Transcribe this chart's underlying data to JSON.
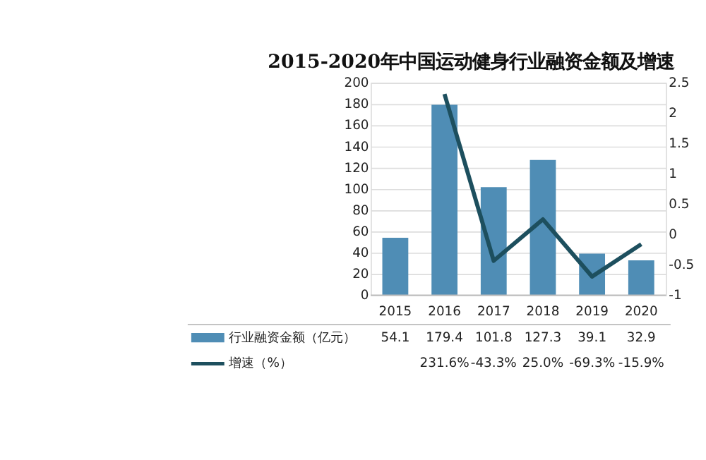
{
  "chart_data": {
    "type": "bar",
    "title": "2015-2020年中国运动健身行业融资金额及增速",
    "categories": [
      "2015",
      "2016",
      "2017",
      "2018",
      "2019",
      "2020"
    ],
    "series": [
      {
        "name": "行业融资金额（亿元）",
        "color": "#4f8db5",
        "values": [
          54.1,
          179.4,
          101.8,
          127.3,
          39.1,
          32.9
        ],
        "value_labels": [
          "54.1",
          "179.4",
          "101.8",
          "127.3",
          "39.1",
          "32.9"
        ]
      },
      {
        "name": "增速（%）",
        "type": "line",
        "axis": "y2",
        "color": "#1d4f5e",
        "values": [
          null,
          2.316,
          -0.433,
          0.25,
          -0.693,
          -0.159
        ],
        "value_labels": [
          null,
          "231.6%",
          "-43.3%",
          "25.0%",
          "-69.3%",
          "-15.9%"
        ]
      }
    ],
    "ylim": [
      0,
      200
    ],
    "yticks": [
      0,
      20,
      40,
      60,
      80,
      100,
      120,
      140,
      160,
      180,
      200
    ],
    "y2lim": [
      -1,
      2.5
    ],
    "y2ticks": [
      -1,
      -0.5,
      0,
      0.5,
      1,
      1.5,
      2,
      2.5
    ],
    "grid": "y",
    "legend": "bottom"
  }
}
